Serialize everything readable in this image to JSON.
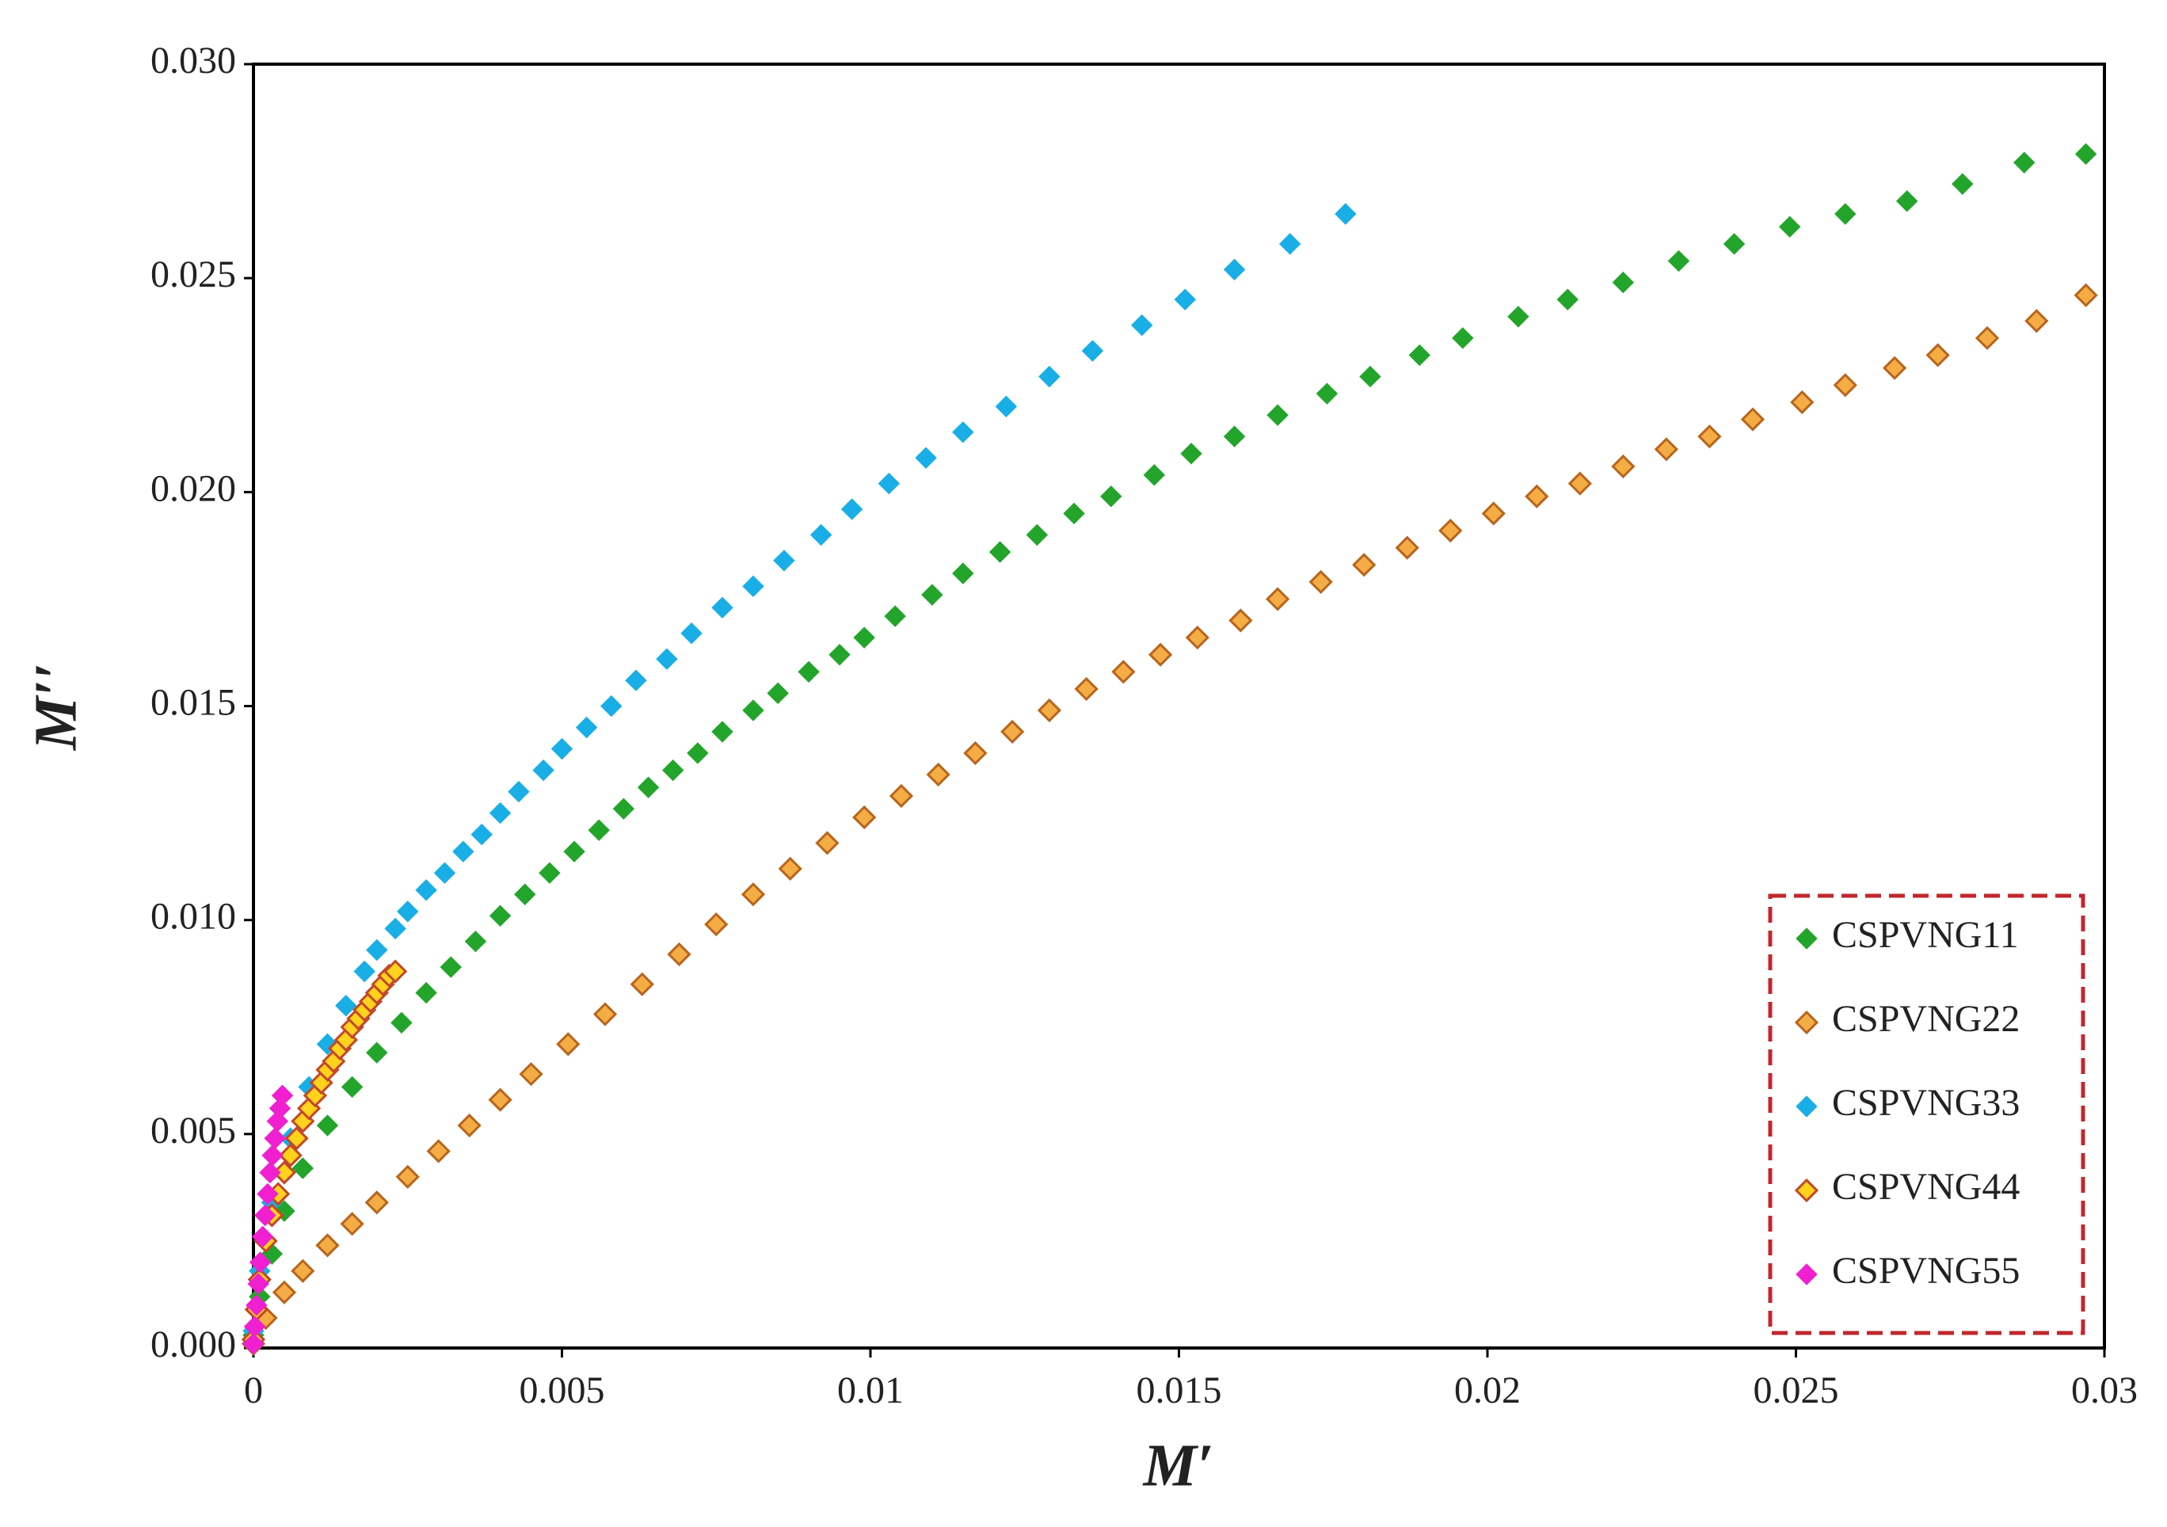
{
  "chart_data": {
    "type": "scatter",
    "xlabel": "M′",
    "ylabel": "M′′",
    "xlim": [
      0,
      0.03
    ],
    "ylim": [
      0,
      0.03
    ],
    "xticks": [
      0,
      0.005,
      0.01,
      0.015,
      0.02,
      0.025,
      0.03
    ],
    "yticks": [
      {
        "value": 0,
        "label": "0.000"
      },
      {
        "value": 0.005,
        "label": "0.005"
      },
      {
        "value": 0.01,
        "label": "0.010"
      },
      {
        "value": 0.015,
        "label": "0.015"
      },
      {
        "value": 0.02,
        "label": "0.020"
      },
      {
        "value": 0.025,
        "label": "0.025"
      },
      {
        "value": 0.03,
        "label": "0.030"
      }
    ],
    "grid": false,
    "legend": "lower right",
    "legend_border": "#c0282d",
    "series": [
      {
        "name": "CSPVNG11",
        "color": "#23a52b",
        "x": [
          0,
          0.0001,
          0.0003,
          0.0005,
          0.0008,
          0.0012,
          0.0016,
          0.002,
          0.0024,
          0.0028,
          0.0032,
          0.0036,
          0.004,
          0.0044,
          0.0048,
          0.0052,
          0.0056,
          0.006,
          0.0064,
          0.0068,
          0.0072,
          0.0076,
          0.0081,
          0.0085,
          0.009,
          0.0095,
          0.0099,
          0.0104,
          0.011,
          0.0115,
          0.0121,
          0.0127,
          0.0133,
          0.0139,
          0.0146,
          0.0152,
          0.0159,
          0.0166,
          0.0174,
          0.0181,
          0.0189,
          0.0196,
          0.0205,
          0.0213,
          0.0222,
          0.0231,
          0.024,
          0.0249,
          0.0258,
          0.0268,
          0.0277,
          0.0287,
          0.0297
        ],
        "values": [
          0.0003,
          0.0012,
          0.0022,
          0.0032,
          0.0042,
          0.0052,
          0.0061,
          0.0069,
          0.0076,
          0.0083,
          0.0089,
          0.0095,
          0.0101,
          0.0106,
          0.0111,
          0.0116,
          0.0121,
          0.0126,
          0.0131,
          0.0135,
          0.0139,
          0.0144,
          0.0149,
          0.0153,
          0.0158,
          0.0162,
          0.0166,
          0.0171,
          0.0176,
          0.0181,
          0.0186,
          0.019,
          0.0195,
          0.0199,
          0.0204,
          0.0209,
          0.0213,
          0.0218,
          0.0223,
          0.0227,
          0.0232,
          0.0236,
          0.0241,
          0.0245,
          0.0249,
          0.0254,
          0.0258,
          0.0262,
          0.0265,
          0.0268,
          0.0272,
          0.0277,
          0.0279
        ]
      },
      {
        "name": "CSPVNG22",
        "color": "#f4ad45",
        "edgecolor": "#b8651e",
        "x": [
          0,
          0.0002,
          0.0005,
          0.0008,
          0.0012,
          0.0016,
          0.002,
          0.0025,
          0.003,
          0.0035,
          0.004,
          0.0045,
          0.0051,
          0.0057,
          0.0063,
          0.0069,
          0.0075,
          0.0081,
          0.0087,
          0.0093,
          0.0099,
          0.0105,
          0.0111,
          0.0117,
          0.0123,
          0.0129,
          0.0135,
          0.0141,
          0.0147,
          0.0153,
          0.016,
          0.0166,
          0.0173,
          0.018,
          0.0187,
          0.0194,
          0.0201,
          0.0208,
          0.0215,
          0.0222,
          0.0229,
          0.0236,
          0.0243,
          0.0251,
          0.0258,
          0.0266,
          0.0273,
          0.0281,
          0.0289,
          0.0297
        ],
        "values": [
          0.0001,
          0.0007,
          0.0013,
          0.0018,
          0.0024,
          0.0029,
          0.0034,
          0.004,
          0.0046,
          0.0052,
          0.0058,
          0.0064,
          0.0071,
          0.0078,
          0.0085,
          0.0092,
          0.0099,
          0.0106,
          0.0112,
          0.0118,
          0.0124,
          0.0129,
          0.0134,
          0.0139,
          0.0144,
          0.0149,
          0.0154,
          0.0158,
          0.0162,
          0.0166,
          0.017,
          0.0175,
          0.0179,
          0.0183,
          0.0187,
          0.0191,
          0.0195,
          0.0199,
          0.0202,
          0.0206,
          0.021,
          0.0213,
          0.0217,
          0.0221,
          0.0225,
          0.0229,
          0.0232,
          0.0236,
          0.024,
          0.0246
        ]
      },
      {
        "name": "CSPVNG33",
        "color": "#19aee6",
        "x": [
          0,
          0.0001,
          0.0003,
          0.0006,
          0.0009,
          0.0012,
          0.0015,
          0.0018,
          0.002,
          0.0023,
          0.0025,
          0.0028,
          0.0031,
          0.0034,
          0.0037,
          0.004,
          0.0043,
          0.0047,
          0.005,
          0.0054,
          0.0058,
          0.0062,
          0.0067,
          0.0071,
          0.0076,
          0.0081,
          0.0086,
          0.0092,
          0.0097,
          0.0103,
          0.0109,
          0.0115,
          0.0122,
          0.0129,
          0.0136,
          0.0144,
          0.0151,
          0.0159,
          0.0168,
          0.0177
        ],
        "values": [
          0.0004,
          0.0018,
          0.0034,
          0.0049,
          0.0061,
          0.0071,
          0.008,
          0.0088,
          0.0093,
          0.0098,
          0.0102,
          0.0107,
          0.0111,
          0.0116,
          0.012,
          0.0125,
          0.013,
          0.0135,
          0.014,
          0.0145,
          0.015,
          0.0156,
          0.0161,
          0.0167,
          0.0173,
          0.0178,
          0.0184,
          0.019,
          0.0196,
          0.0202,
          0.0208,
          0.0214,
          0.022,
          0.0227,
          0.0233,
          0.0239,
          0.0245,
          0.0252,
          0.0258,
          0.0265
        ]
      },
      {
        "name": "CSPVNG44",
        "color": "#ffd21c",
        "edgecolor": "#c2472a",
        "x": [
          0,
          5e-05,
          0.0001,
          0.0002,
          0.0003,
          0.0004,
          0.0005,
          0.0006,
          0.0007,
          0.0008,
          0.0009,
          0.001,
          0.0011,
          0.0012,
          0.0013,
          0.0014,
          0.0015,
          0.0016,
          0.0017,
          0.0018,
          0.0019,
          0.002,
          0.0021,
          0.0022,
          0.0023
        ],
        "values": [
          0.0002,
          0.0009,
          0.0016,
          0.0025,
          0.0031,
          0.0036,
          0.0041,
          0.0045,
          0.0049,
          0.0053,
          0.0056,
          0.0059,
          0.0062,
          0.0065,
          0.0067,
          0.007,
          0.0072,
          0.0075,
          0.0077,
          0.0079,
          0.0081,
          0.0083,
          0.0085,
          0.0087,
          0.0088
        ]
      },
      {
        "name": "CSPVNG55",
        "color": "#f01fd0",
        "x": [
          0,
          2e-05,
          5e-05,
          8e-05,
          0.00011,
          0.00015,
          0.00019,
          0.00023,
          0.00027,
          0.00031,
          0.00035,
          0.00039,
          0.00043,
          0.00047
        ],
        "values": [
          0.0001,
          0.0005,
          0.001,
          0.0015,
          0.002,
          0.0026,
          0.0031,
          0.0036,
          0.0041,
          0.0045,
          0.0049,
          0.0053,
          0.0056,
          0.0059
        ]
      }
    ]
  }
}
